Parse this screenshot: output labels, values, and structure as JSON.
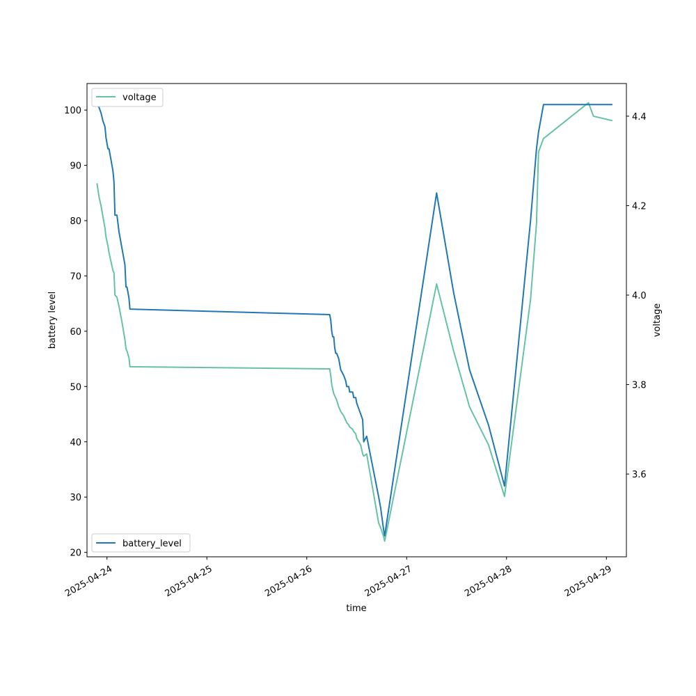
{
  "chart_data": {
    "type": "line",
    "xlabel": "time",
    "ylabel_left": "battery level",
    "ylabel_right": "voltage",
    "x_ticks": [
      "2025-04-24",
      "2025-04-25",
      "2025-04-26",
      "2025-04-27",
      "2025-04-28",
      "2025-04-29"
    ],
    "y_left_ticks": [
      20,
      30,
      40,
      50,
      60,
      70,
      80,
      90,
      100
    ],
    "y_right_ticks": [
      3.6,
      3.8,
      4.0,
      4.2,
      4.4
    ],
    "y_left_range": [
      19.2,
      104.8
    ],
    "y_right_range": [
      3.415,
      4.473
    ],
    "x_range": [
      "2025-04-23 19:12",
      "2025-04-29 04:48"
    ],
    "legend_left": {
      "placement": "lower-left",
      "label": "battery_level"
    },
    "legend_right": {
      "placement": "upper-left",
      "label": "voltage"
    },
    "colors": {
      "battery_level": "#1f77b4",
      "voltage": "#66c2a5"
    },
    "series": [
      {
        "name": "battery_level",
        "axis": "left",
        "points": [
          [
            "2025-04-23 21:36",
            101
          ],
          [
            "2025-04-23 22:05",
            100.5
          ],
          [
            "2025-04-23 22:34",
            99.5
          ],
          [
            "2025-04-23 23:02",
            98
          ],
          [
            "2025-04-23 23:31",
            97
          ],
          [
            "2025-04-23 23:46",
            95
          ],
          [
            "2025-04-24 00:14",
            93
          ],
          [
            "2025-04-24 00:29",
            93
          ],
          [
            "2025-04-24 00:58",
            91
          ],
          [
            "2025-04-24 01:26",
            89
          ],
          [
            "2025-04-24 01:41",
            87
          ],
          [
            "2025-04-24 01:55",
            81
          ],
          [
            "2025-04-24 02:24",
            81
          ],
          [
            "2025-04-24 02:53",
            78
          ],
          [
            "2025-04-24 03:36",
            75
          ],
          [
            "2025-04-24 04:19",
            72
          ],
          [
            "2025-04-24 04:34",
            68
          ],
          [
            "2025-04-24 04:48",
            68
          ],
          [
            "2025-04-24 05:17",
            66
          ],
          [
            "2025-04-24 05:31",
            64
          ],
          [
            "2025-04-26 05:31",
            63
          ],
          [
            "2025-04-26 05:46",
            62
          ],
          [
            "2025-04-26 06:00",
            60
          ],
          [
            "2025-04-26 06:14",
            59
          ],
          [
            "2025-04-26 06:29",
            59
          ],
          [
            "2025-04-26 06:43",
            57
          ],
          [
            "2025-04-26 06:58",
            56
          ],
          [
            "2025-04-26 07:12",
            56
          ],
          [
            "2025-04-26 07:41",
            55
          ],
          [
            "2025-04-26 08:10",
            53
          ],
          [
            "2025-04-26 08:53",
            52
          ],
          [
            "2025-04-26 09:22",
            51
          ],
          [
            "2025-04-26 09:36",
            50
          ],
          [
            "2025-04-26 10:05",
            50
          ],
          [
            "2025-04-26 10:19",
            49
          ],
          [
            "2025-04-26 11:02",
            49
          ],
          [
            "2025-04-26 11:17",
            48
          ],
          [
            "2025-04-26 11:46",
            48
          ],
          [
            "2025-04-26 12:00",
            47
          ],
          [
            "2025-04-26 12:58",
            45
          ],
          [
            "2025-04-26 13:26",
            44
          ],
          [
            "2025-04-26 13:41",
            40
          ],
          [
            "2025-04-26 14:24",
            41
          ],
          [
            "2025-04-26 17:17",
            30
          ],
          [
            "2025-04-26 17:46",
            28
          ],
          [
            "2025-04-26 18:29",
            24
          ],
          [
            "2025-04-26 18:43",
            23
          ],
          [
            "2025-04-27 07:12",
            85
          ],
          [
            "2025-04-27 11:17",
            67
          ],
          [
            "2025-04-27 15:07",
            53
          ],
          [
            "2025-04-27 19:41",
            43
          ],
          [
            "2025-04-27 23:31",
            32
          ],
          [
            "2025-04-28 05:46",
            80
          ],
          [
            "2025-04-28 07:12",
            93
          ],
          [
            "2025-04-28 07:41",
            96
          ],
          [
            "2025-04-28 08:53",
            101
          ],
          [
            "2025-04-29 01:26",
            101
          ]
        ]
      },
      {
        "name": "voltage",
        "axis": "right",
        "points": [
          [
            "2025-04-23 21:36",
            4.25
          ],
          [
            "2025-04-23 22:05",
            4.22
          ],
          [
            "2025-04-23 22:34",
            4.2
          ],
          [
            "2025-04-23 23:02",
            4.175
          ],
          [
            "2025-04-23 23:31",
            4.15
          ],
          [
            "2025-04-23 23:46",
            4.13
          ],
          [
            "2025-04-24 00:14",
            4.11
          ],
          [
            "2025-04-24 00:29",
            4.095
          ],
          [
            "2025-04-24 00:58",
            4.075
          ],
          [
            "2025-04-24 01:26",
            4.055
          ],
          [
            "2025-04-24 01:41",
            4.05
          ],
          [
            "2025-04-24 01:55",
            4.0
          ],
          [
            "2025-04-24 02:24",
            3.995
          ],
          [
            "2025-04-24 02:53",
            3.975
          ],
          [
            "2025-04-24 03:36",
            3.94
          ],
          [
            "2025-04-24 04:19",
            3.9
          ],
          [
            "2025-04-24 04:34",
            3.88
          ],
          [
            "2025-04-24 04:48",
            3.875
          ],
          [
            "2025-04-24 05:17",
            3.86
          ],
          [
            "2025-04-24 05:31",
            3.84
          ],
          [
            "2025-04-26 05:31",
            3.835
          ],
          [
            "2025-04-26 05:46",
            3.82
          ],
          [
            "2025-04-26 06:00",
            3.8
          ],
          [
            "2025-04-26 06:14",
            3.79
          ],
          [
            "2025-04-26 06:29",
            3.78
          ],
          [
            "2025-04-26 06:43",
            3.775
          ],
          [
            "2025-04-26 06:58",
            3.77
          ],
          [
            "2025-04-26 07:12",
            3.765
          ],
          [
            "2025-04-26 07:41",
            3.75
          ],
          [
            "2025-04-26 08:10",
            3.74
          ],
          [
            "2025-04-26 08:53",
            3.73
          ],
          [
            "2025-04-26 09:22",
            3.72
          ],
          [
            "2025-04-26 09:36",
            3.715
          ],
          [
            "2025-04-26 10:05",
            3.71
          ],
          [
            "2025-04-26 10:19",
            3.705
          ],
          [
            "2025-04-26 11:02",
            3.7
          ],
          [
            "2025-04-26 11:17",
            3.695
          ],
          [
            "2025-04-26 11:46",
            3.69
          ],
          [
            "2025-04-26 12:00",
            3.68
          ],
          [
            "2025-04-26 12:58",
            3.665
          ],
          [
            "2025-04-26 13:26",
            3.645
          ],
          [
            "2025-04-26 13:41",
            3.64
          ],
          [
            "2025-04-26 14:24",
            3.645
          ],
          [
            "2025-04-26 17:17",
            3.49
          ],
          [
            "2025-04-26 17:46",
            3.48
          ],
          [
            "2025-04-26 18:29",
            3.46
          ],
          [
            "2025-04-26 18:43",
            3.45
          ],
          [
            "2025-04-27 07:12",
            4.025
          ],
          [
            "2025-04-27 11:17",
            3.875
          ],
          [
            "2025-04-27 15:07",
            3.75
          ],
          [
            "2025-04-27 19:41",
            3.665
          ],
          [
            "2025-04-27 23:31",
            3.55
          ],
          [
            "2025-04-28 05:46",
            3.99
          ],
          [
            "2025-04-28 07:12",
            4.16
          ],
          [
            "2025-04-28 07:41",
            4.32
          ],
          [
            "2025-04-28 08:53",
            4.35
          ],
          [
            "2025-04-28 19:41",
            4.43
          ],
          [
            "2025-04-28 20:53",
            4.4
          ],
          [
            "2025-04-29 01:26",
            4.39
          ]
        ]
      }
    ]
  }
}
